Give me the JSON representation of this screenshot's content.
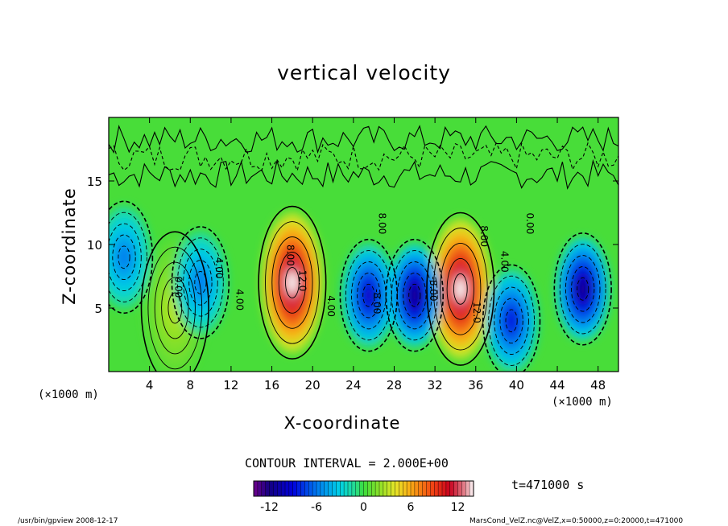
{
  "chart_data": {
    "type": "heatmap",
    "title": "vertical velocity",
    "xlabel": "X-coordinate",
    "ylabel": "Z-coordinate",
    "x_unit": "(×1000 m)",
    "x_unit_right": "(×1000 m)",
    "xlim": [
      0,
      50
    ],
    "ylim": [
      0,
      20
    ],
    "x_ticks": [
      4,
      8,
      12,
      16,
      20,
      24,
      28,
      32,
      36,
      40,
      44,
      48
    ],
    "y_ticks": [
      5,
      10,
      15
    ],
    "colorbar": {
      "min": -14,
      "max": 14,
      "ticks": [
        -12,
        -6,
        0,
        6,
        12
      ]
    },
    "contour_interval": "CONTOUR INTERVAL = 2.000E+00",
    "contour_labels": [
      {
        "text": "0.00",
        "x": 6.5,
        "z": 7.5
      },
      {
        "text": "4.00",
        "x": 10.5,
        "z": 9.0
      },
      {
        "text": "4.00",
        "x": 12.5,
        "z": 6.5
      },
      {
        "text": "8.00",
        "x": 17.5,
        "z": 10.0
      },
      {
        "text": "12.0",
        "x": 18.7,
        "z": 8.0
      },
      {
        "text": "4.00",
        "x": 21.5,
        "z": 6.0
      },
      {
        "text": "8.00",
        "x": 26.5,
        "z": 12.5
      },
      {
        "text": "-8.00",
        "x": 26.0,
        "z": 6.5
      },
      {
        "text": "-8.00",
        "x": 31.5,
        "z": 7.5
      },
      {
        "text": "8.00",
        "x": 36.5,
        "z": 11.5
      },
      {
        "text": "12.0",
        "x": 35.8,
        "z": 5.5
      },
      {
        "text": "4.00",
        "x": 38.5,
        "z": 9.5
      },
      {
        "text": "0.00",
        "x": 41.0,
        "z": 12.5
      }
    ],
    "features": [
      {
        "sign": "positive",
        "x_center": 18.0,
        "z_center": 7.0,
        "peak": 14
      },
      {
        "sign": "positive",
        "x_center": 34.5,
        "z_center": 6.5,
        "peak": 14
      },
      {
        "sign": "positive",
        "x_center": 6.5,
        "z_center": 5.0,
        "peak": 3
      },
      {
        "sign": "negative",
        "x_center": 25.5,
        "z_center": 6.0,
        "peak": -10
      },
      {
        "sign": "negative",
        "x_center": 30.0,
        "z_center": 6.0,
        "peak": -12
      },
      {
        "sign": "negative",
        "x_center": 39.5,
        "z_center": 4.0,
        "peak": -9
      },
      {
        "sign": "negative",
        "x_center": 46.5,
        "z_center": 6.5,
        "peak": -12
      },
      {
        "sign": "negative",
        "x_center": 9.0,
        "z_center": 7.0,
        "peak": -6
      },
      {
        "sign": "negative",
        "x_center": 1.5,
        "z_center": 9.0,
        "peak": -6
      }
    ]
  },
  "footer": {
    "time": "t=471000 s",
    "left": "/usr/bin/gpview   2008-12-17",
    "right": "MarsCond_VelZ.nc@VelZ,x=0:50000,z=0:20000,t=471000"
  }
}
